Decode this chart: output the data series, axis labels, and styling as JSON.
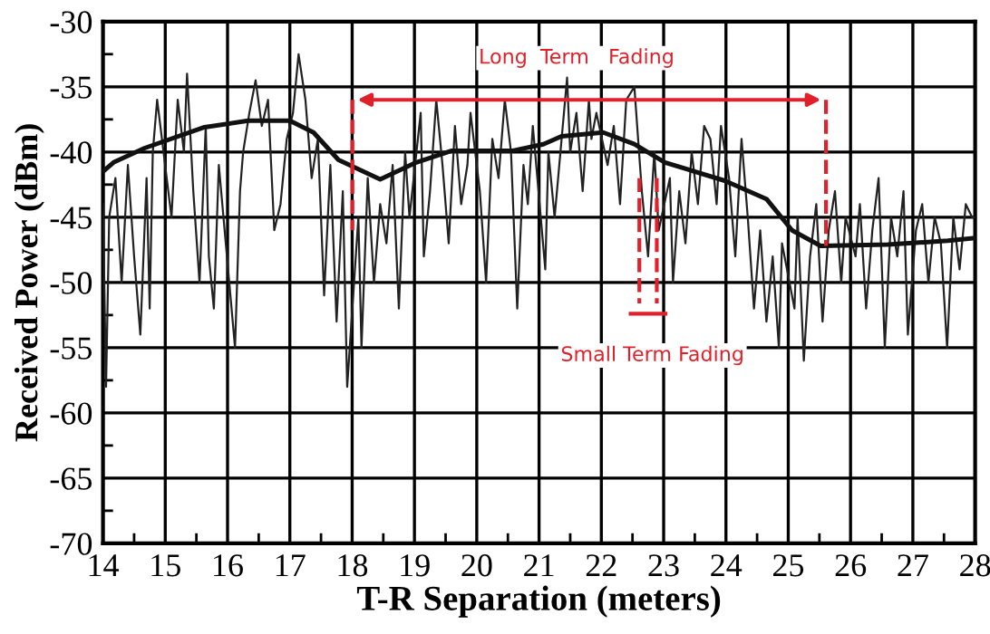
{
  "chart_data": {
    "type": "line",
    "xlabel": "T-R Separation (meters)",
    "ylabel": "Received Power (dBm)",
    "xlim": [
      14,
      28
    ],
    "ylim": [
      -70,
      -30
    ],
    "xticks": [
      14,
      {
        "value": 14.5,
        "label": null
      },
      15,
      {
        "value": 15.5,
        "label": null
      },
      16,
      {
        "value": 16.5,
        "label": null
      },
      17,
      {
        "value": 17.5,
        "label": null
      },
      18,
      {
        "value": 18.5,
        "label": null
      },
      19,
      {
        "value": 19.5,
        "label": null
      },
      20,
      {
        "value": 20.5,
        "label": null
      },
      21,
      {
        "value": 21.5,
        "label": null
      },
      22,
      {
        "value": 22.5,
        "label": null
      },
      23,
      {
        "value": 23.5,
        "label": null
      },
      24,
      {
        "value": 24.5,
        "label": null
      },
      25,
      {
        "value": 25.5,
        "label": null
      },
      26,
      {
        "value": 26.5,
        "label": null
      },
      27,
      {
        "value": 27.5,
        "label": null
      },
      28
    ],
    "yticks": [
      -70,
      {
        "value": -67.5,
        "label": null
      },
      -65,
      {
        "value": -62.5,
        "label": null
      },
      -60,
      {
        "value": -57.5,
        "label": null
      },
      -55,
      {
        "value": -52.5,
        "label": null
      },
      -50,
      {
        "value": -47.5,
        "label": null
      },
      -45,
      {
        "value": -42.5,
        "label": null
      },
      -40,
      {
        "value": -37.5,
        "label": null
      },
      -35,
      {
        "value": -32.5,
        "label": null
      },
      -30
    ],
    "grid": true,
    "marker": "none",
    "line_style": "solid",
    "series": [
      {
        "color": "#222222",
        "x": [
          14.0,
          14.05,
          14.1,
          14.2,
          14.3,
          14.4,
          14.5,
          14.6,
          14.7,
          14.75,
          14.8,
          14.87,
          15.1,
          15.2,
          15.3,
          15.35,
          15.45,
          15.55,
          15.65,
          15.7,
          15.78,
          15.86,
          16.12,
          16.2,
          16.25,
          16.35,
          16.45,
          16.55,
          16.65,
          16.75,
          16.85,
          16.95,
          17.05,
          17.14,
          17.25,
          17.35,
          17.45,
          17.55,
          17.65,
          17.75,
          17.85,
          17.92,
          18.1,
          18.15,
          18.25,
          18.35,
          18.45,
          18.55,
          18.65,
          18.75,
          18.85,
          18.92,
          19.1,
          19.15,
          19.25,
          19.35,
          19.45,
          19.55,
          19.65,
          19.75,
          19.85,
          19.9,
          20.05,
          20.15,
          20.25,
          20.35,
          20.45,
          20.55,
          20.65,
          20.75,
          20.82,
          20.9,
          21.1,
          21.15,
          21.25,
          21.45,
          21.5,
          21.6,
          21.7,
          21.8,
          21.84,
          21.92,
          22.1,
          22.2,
          22.3,
          22.4,
          22.53,
          22.65,
          22.75,
          22.85,
          22.92,
          23.1,
          23.15,
          23.25,
          23.35,
          23.45,
          23.55,
          23.65,
          23.75,
          23.85,
          23.92,
          24.05,
          24.15,
          24.25,
          24.35,
          24.45,
          24.55,
          24.65,
          24.75,
          24.85,
          24.9,
          25.1,
          25.15,
          25.25,
          25.35,
          25.45,
          25.55,
          25.65,
          25.75,
          25.85,
          25.92,
          26.08,
          26.15,
          26.25,
          26.35,
          26.45,
          26.55,
          26.65,
          26.75,
          26.85,
          26.92,
          27.05,
          27.15,
          27.25,
          27.35,
          27.45,
          27.55,
          27.65,
          27.75,
          27.85,
          27.95,
          28.0
        ],
        "values": [
          -44,
          -58,
          -45,
          -42,
          -50,
          -41,
          -48,
          -54,
          -42,
          -52,
          -40,
          -36,
          -45,
          -36,
          -40,
          -34,
          -43,
          -50,
          -38,
          -48,
          -52,
          -41,
          -55,
          -43,
          -40,
          -37,
          -34.5,
          -38,
          -36,
          -46,
          -44,
          -39,
          -37,
          -32.5,
          -36,
          -42,
          -39,
          -51,
          -41,
          -53,
          -43,
          -58,
          -45,
          -55,
          -42,
          -50,
          -44,
          -47,
          -41,
          -52,
          -40,
          -45,
          -37,
          -48,
          -43,
          -36,
          -41,
          -47,
          -38,
          -44,
          -41,
          -37,
          -43,
          -50,
          -39,
          -42,
          -36,
          -40,
          -52,
          -41,
          -44,
          -38,
          -49,
          -40,
          -45,
          -34.3,
          -40,
          -37,
          -43,
          -36,
          -39,
          -37,
          -41,
          -38,
          -44,
          -36,
          -35,
          -43,
          -48,
          -40,
          -46,
          -42,
          -50,
          -43,
          -47,
          -40,
          -44,
          -38,
          -39,
          -44,
          -38,
          -42,
          -48,
          -39,
          -45,
          -52,
          -46,
          -53,
          -48,
          -55,
          -47,
          -52,
          -45,
          -56,
          -48,
          -44,
          -53,
          -46,
          -43,
          -50,
          -45,
          -48,
          -44,
          -52,
          -46,
          -42,
          -55,
          -45,
          -48,
          -43,
          -54,
          -46,
          -44,
          -50,
          -45,
          -47,
          -55,
          -45,
          -49,
          -44,
          -45,
          -45
        ]
      },
      {
        "color": "#111111",
        "x": [
          14.0,
          14.17,
          14.67,
          15.63,
          16.33,
          17.0,
          17.38,
          17.78,
          18.45,
          19.03,
          19.6,
          20.58,
          21.07,
          21.36,
          22.03,
          22.53,
          23.02,
          23.98,
          24.65,
          25.06,
          25.52,
          26.6,
          27.56,
          28.0
        ],
        "values": [
          -41.5,
          -40.8,
          -39.7,
          -38.1,
          -37.6,
          -37.6,
          -38.5,
          -40.6,
          -42.1,
          -40.8,
          -39.9,
          -39.9,
          -39.4,
          -38.8,
          -38.5,
          -39.4,
          -40.8,
          -42.2,
          -43.6,
          -46.0,
          -47.2,
          -47.1,
          -46.8,
          -46.6
        ]
      }
    ],
    "annotations": [
      "Long  Term   Fading",
      "Small Term Fading"
    ]
  }
}
